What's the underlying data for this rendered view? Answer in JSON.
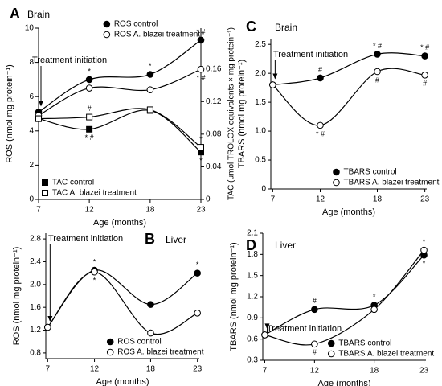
{
  "chart_data": [
    {
      "type": "line",
      "panel": "A",
      "title": "Brain",
      "annotation": "Treatment initiation",
      "x": [
        7,
        12,
        18,
        23
      ],
      "xlim": [
        7,
        23
      ],
      "xticks": [
        7,
        12,
        18,
        23
      ],
      "xlabel": "Age (months)",
      "ylabel": "ROS (nmol mg protein⁻¹)",
      "ylim": [
        0,
        10
      ],
      "yticks": [
        0,
        2,
        4,
        6,
        8,
        10
      ],
      "y2label": "TAC (μmol TROLOX equivalents × mg protein⁻¹)",
      "y2lim": [
        0,
        0.21
      ],
      "y2ticks": [
        0,
        0.04,
        0.08,
        0.12,
        0.16
      ],
      "legend_loc": "upper right",
      "series": [
        {
          "name": "ROS control",
          "color": "#000000",
          "marker": "circle",
          "marker_fill": "#000000",
          "values": [
            5.1,
            7.0,
            7.3,
            9.3
          ],
          "significance": [
            null,
            "*",
            "*",
            "* #"
          ]
        },
        {
          "name": "ROS A. blazei treatment",
          "color": "#000000",
          "marker": "circle",
          "marker_fill": "#ffffff",
          "values": [
            4.9,
            6.5,
            6.4,
            7.6
          ],
          "significance": [
            null,
            null,
            null,
            "* #"
          ]
        },
        {
          "name": "TAC control",
          "color": "#000000",
          "marker": "square",
          "marker_fill": "#000000",
          "axis": "y2",
          "legend_loc": "lower left",
          "values": [
            0.099,
            0.086,
            0.109,
            0.058
          ],
          "significance": [
            null,
            "* #",
            null,
            "*"
          ]
        },
        {
          "name": "TAC A. blazei treatment",
          "color": "#000000",
          "marker": "square",
          "marker_fill": "#ffffff",
          "axis": "y2",
          "legend_loc": "lower left",
          "values": [
            0.099,
            0.101,
            0.11,
            0.064
          ],
          "significance": [
            null,
            "#",
            null,
            "*"
          ]
        }
      ]
    },
    {
      "type": "line",
      "panel": "B",
      "title": "Liver",
      "annotation": "Treatment initiation",
      "x": [
        7,
        12,
        18,
        23
      ],
      "xlim": [
        6.8,
        23.2
      ],
      "xticks": [
        7,
        12,
        18,
        23
      ],
      "xlabel": "Age (months)",
      "ylabel": "ROS (nmol mg protein⁻¹)",
      "ylim": [
        0.7,
        2.9
      ],
      "yticks": [
        0.8,
        1.2,
        1.6,
        {
          "value": 2,
          "label": "2.0"
        },
        2.4,
        2.8
      ],
      "legend_loc": "lower right",
      "series": [
        {
          "name": "ROS control",
          "color": "#000000",
          "marker": "circle",
          "marker_fill": "#000000",
          "values": [
            1.25,
            2.25,
            1.65,
            2.2
          ],
          "significance": [
            null,
            "*",
            null,
            "*"
          ]
        },
        {
          "name": "ROS A. blazei treatment",
          "color": "#000000",
          "marker": "circle",
          "marker_fill": "#ffffff",
          "values": [
            1.25,
            2.22,
            1.15,
            1.5
          ],
          "significance": [
            null,
            "*",
            null,
            null
          ]
        }
      ]
    },
    {
      "type": "line",
      "panel": "C",
      "title": "Brain",
      "annotation": "Treatment initiation",
      "x": [
        7,
        12,
        18,
        23
      ],
      "xlim": [
        6.8,
        23.2
      ],
      "xticks": [
        7,
        12,
        18,
        23
      ],
      "xlabel": "Age (months)",
      "ylabel": "TBARS  (nmol mg protein⁻¹)",
      "ylim": [
        0,
        2.6
      ],
      "yticks": [
        0,
        0.5,
        {
          "value": 1,
          "label": "1.0"
        },
        1.5,
        {
          "value": 2,
          "label": "2.0"
        },
        2.5
      ],
      "legend_loc": "lower right",
      "series": [
        {
          "name": "TBARS control",
          "color": "#000000",
          "marker": "circle",
          "marker_fill": "#000000",
          "values": [
            1.8,
            1.92,
            2.33,
            2.3
          ],
          "significance": [
            null,
            "#",
            "* #",
            "* #"
          ]
        },
        {
          "name": "TBARS A. blazei treatment",
          "color": "#000000",
          "marker": "circle",
          "marker_fill": "#ffffff",
          "values": [
            1.8,
            1.1,
            2.03,
            1.97
          ],
          "significance": [
            null,
            "* #",
            "#",
            "#"
          ]
        }
      ]
    },
    {
      "type": "line",
      "panel": "D",
      "title": "Liver",
      "annotation": "Treatment initiation",
      "x": [
        7,
        12,
        18,
        23
      ],
      "xlim": [
        6.8,
        23.2
      ],
      "xticks": [
        7,
        12,
        18,
        23
      ],
      "xlabel": "Age (months)",
      "ylabel": "TBARS  (nmol mg protein⁻¹)",
      "ylim": [
        0.3,
        2.1
      ],
      "yticks": [
        0.3,
        0.6,
        0.9,
        1.2,
        1.5,
        1.8,
        2.1
      ],
      "legend_loc": "lower right",
      "series": [
        {
          "name": "TBARS control",
          "color": "#000000",
          "marker": "circle",
          "marker_fill": "#000000",
          "values": [
            0.66,
            1.02,
            1.08,
            1.79
          ],
          "significance": [
            null,
            "#",
            "*",
            "*"
          ]
        },
        {
          "name": "TBARS A. blazei treatment",
          "color": "#000000",
          "marker": "circle",
          "marker_fill": "#ffffff",
          "values": [
            0.66,
            0.53,
            1.02,
            1.86
          ],
          "significance": [
            null,
            "#",
            null,
            "*"
          ]
        }
      ]
    }
  ]
}
